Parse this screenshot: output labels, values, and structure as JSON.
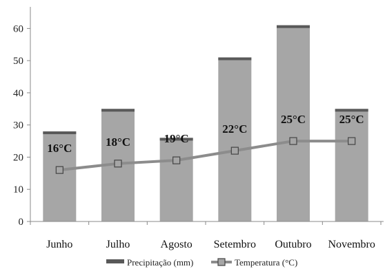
{
  "chart_data": {
    "type": "bar",
    "categories": [
      "Junho",
      "Julho",
      "Agosto",
      "Setembro",
      "Outubro",
      "Novembro"
    ],
    "series": [
      {
        "name": "Precipitação (mm)",
        "type": "bar",
        "values": [
          28,
          35,
          26,
          51,
          61,
          35
        ]
      },
      {
        "name": "Temperatura (°C)",
        "type": "line",
        "values": [
          16,
          18,
          19,
          22,
          25,
          25
        ],
        "labels": [
          "16°C",
          "18°C",
          "19°C",
          "22°C",
          "25°C",
          "25°C"
        ]
      }
    ],
    "y_ticks": [
      "0",
      "10",
      "20",
      "30",
      "40",
      "50",
      "60"
    ],
    "ylim": [
      0,
      65
    ],
    "grid": false,
    "legend_position": "bottom",
    "colors": {
      "bar": "#a6a6a6",
      "bar_top": "#595959",
      "line": "#8c8c8c",
      "axis": "#888888"
    },
    "legend": {
      "bar_label": "Precipitação (mm)",
      "line_label": "Temperatura (°C)"
    }
  }
}
